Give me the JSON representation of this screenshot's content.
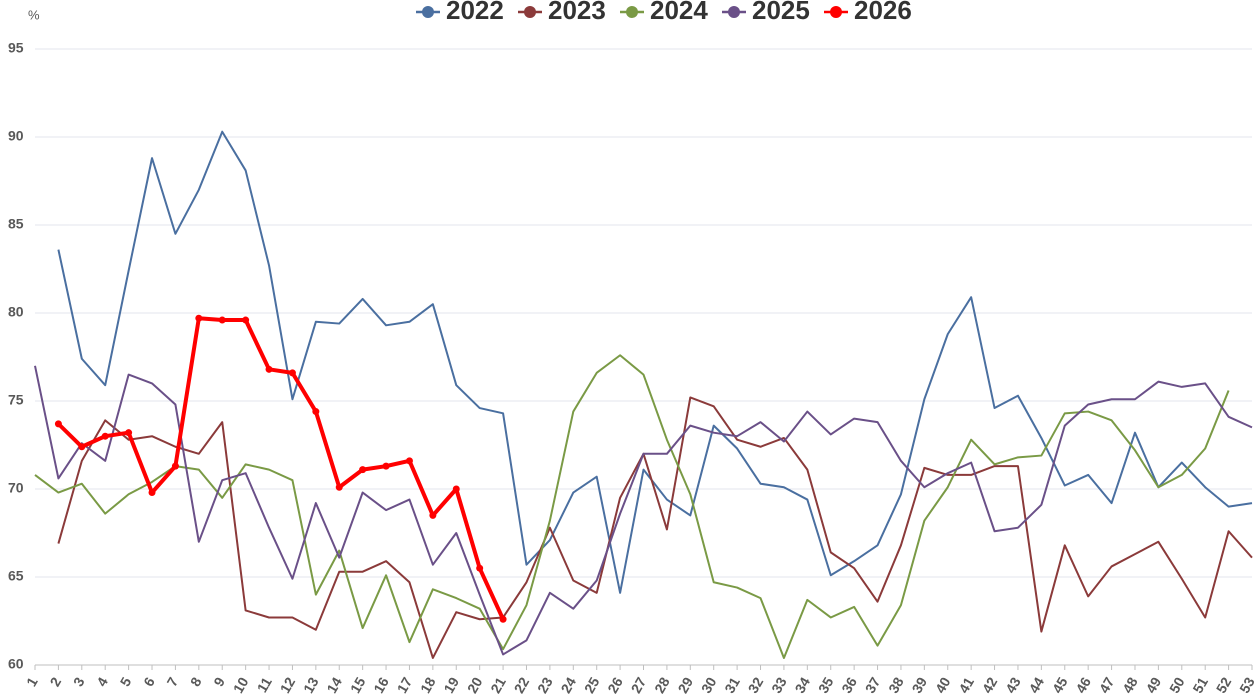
{
  "chart_data": {
    "type": "line",
    "y_label": "%",
    "categories": [
      "1",
      "2",
      "3",
      "4",
      "5",
      "6",
      "7",
      "8",
      "9",
      "10",
      "11",
      "12",
      "13",
      "14",
      "15",
      "16",
      "17",
      "18",
      "19",
      "20",
      "21",
      "22",
      "23",
      "24",
      "25",
      "26",
      "27",
      "28",
      "29",
      "30",
      "31",
      "32",
      "33",
      "34",
      "35",
      "36",
      "37",
      "38",
      "39",
      "40",
      "41",
      "42",
      "43",
      "44",
      "45",
      "46",
      "47",
      "48",
      "49",
      "50",
      "51",
      "52",
      "53"
    ],
    "ylim": [
      60,
      95
    ],
    "yticks": [
      60,
      65,
      70,
      75,
      80,
      85,
      90,
      95
    ],
    "grid": true,
    "legend": "top",
    "series": [
      {
        "name": "2022",
        "color": "#4a6fa0",
        "values": [
          null,
          83.6,
          77.4,
          75.9,
          82.4,
          88.8,
          84.5,
          87.0,
          90.3,
          88.1,
          82.7,
          75.1,
          79.5,
          79.4,
          80.8,
          79.3,
          79.5,
          80.5,
          75.9,
          74.6,
          74.3,
          65.7,
          67.1,
          69.8,
          70.7,
          64.1,
          71.1,
          69.4,
          68.5,
          73.6,
          72.3,
          70.3,
          70.1,
          69.4,
          65.1,
          65.9,
          66.8,
          69.7,
          75.1,
          78.8,
          80.9,
          74.6,
          75.3,
          72.9,
          70.2,
          70.8,
          69.2,
          73.2,
          70.1,
          71.5,
          70.1,
          69.0,
          69.2
        ]
      },
      {
        "name": "2023",
        "color": "#8b3a3a",
        "values": [
          null,
          66.9,
          71.6,
          73.9,
          72.8,
          73.0,
          72.4,
          72.0,
          73.8,
          63.1,
          62.7,
          62.7,
          62.0,
          65.3,
          65.3,
          65.9,
          64.7,
          60.4,
          63.0,
          62.6,
          62.7,
          64.7,
          67.8,
          64.8,
          64.1,
          69.5,
          72.0,
          67.7,
          75.2,
          74.7,
          72.8,
          72.4,
          72.9,
          71.1,
          66.4,
          65.5,
          63.6,
          66.8,
          71.2,
          70.8,
          70.8,
          71.3,
          71.3,
          61.9,
          66.8,
          63.9,
          65.6,
          66.3,
          67.0,
          64.9,
          62.7,
          67.6,
          66.1
        ]
      },
      {
        "name": "2024",
        "color": "#7a9a45",
        "values": [
          70.8,
          69.8,
          70.3,
          68.6,
          69.7,
          70.4,
          71.3,
          71.1,
          69.5,
          71.4,
          71.1,
          70.5,
          64.0,
          66.5,
          62.1,
          65.1,
          61.3,
          64.3,
          63.8,
          63.2,
          60.9,
          63.4,
          68.2,
          74.4,
          76.6,
          77.6,
          76.5,
          72.8,
          69.7,
          64.7,
          64.4,
          63.8,
          60.4,
          63.7,
          62.7,
          63.3,
          61.1,
          63.4,
          68.2,
          70.1,
          72.8,
          71.4,
          71.8,
          71.9,
          74.3,
          74.4,
          73.9,
          72.2,
          70.1,
          70.8,
          72.3,
          75.6,
          null
        ]
      },
      {
        "name": "2025",
        "color": "#6a5088",
        "values": [
          77.0,
          70.6,
          72.6,
          71.6,
          76.5,
          76.0,
          74.8,
          67.0,
          70.5,
          70.9,
          67.8,
          64.9,
          69.2,
          66.1,
          69.8,
          68.8,
          69.4,
          65.7,
          67.5,
          64.0,
          60.6,
          61.4,
          64.1,
          63.2,
          64.8,
          68.6,
          72.0,
          72.0,
          73.6,
          73.2,
          73.0,
          73.8,
          72.7,
          74.4,
          73.1,
          74.0,
          73.8,
          71.6,
          70.1,
          70.9,
          71.5,
          67.6,
          67.8,
          69.1,
          73.6,
          74.8,
          75.1,
          75.1,
          76.1,
          75.8,
          76.0,
          74.1,
          73.5
        ]
      },
      {
        "name": "2026",
        "color": "#ff0000",
        "markers": true,
        "values": [
          null,
          73.7,
          72.4,
          73.0,
          73.2,
          69.8,
          71.3,
          79.7,
          79.6,
          79.6,
          76.8,
          76.6,
          74.4,
          70.1,
          71.1,
          71.3,
          71.6,
          68.5,
          70.0,
          65.5,
          62.6,
          null,
          null,
          null,
          null,
          null,
          null,
          null,
          null,
          null,
          null,
          null,
          null,
          null,
          null,
          null,
          null,
          null,
          null,
          null,
          null,
          null,
          null,
          null,
          null,
          null,
          null,
          null,
          null,
          null,
          null,
          null,
          null
        ]
      }
    ]
  }
}
